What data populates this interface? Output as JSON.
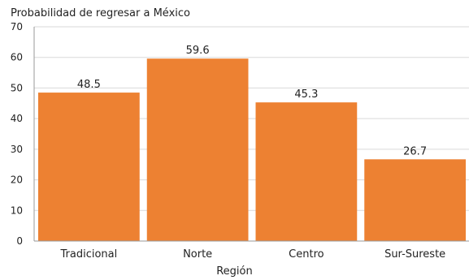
{
  "chart_data": {
    "type": "bar",
    "ylabel": "Probabilidad de regresar a México",
    "xlabel": "Región",
    "categories": [
      "Tradicional",
      "Norte",
      "Centro",
      "Sur-Sureste"
    ],
    "values": [
      48.5,
      59.6,
      45.3,
      26.7
    ],
    "data_labels": [
      "48.5",
      "59.6",
      "45.3",
      "26.7"
    ],
    "ylim": [
      0,
      70
    ],
    "yticks": [
      0,
      10,
      20,
      30,
      40,
      50,
      60,
      70
    ],
    "bar_color": "#ED8132",
    "grid": true
  }
}
